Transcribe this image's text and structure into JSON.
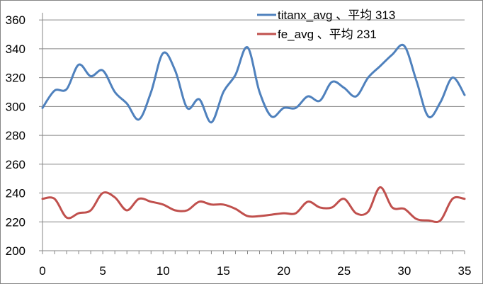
{
  "chart_data": {
    "type": "line",
    "smooth": true,
    "x": [
      0,
      1,
      2,
      3,
      4,
      5,
      6,
      7,
      8,
      9,
      10,
      11,
      12,
      13,
      14,
      15,
      16,
      17,
      18,
      19,
      20,
      21,
      22,
      23,
      24,
      25,
      26,
      27,
      28,
      29,
      30,
      31,
      32,
      33,
      34,
      35
    ],
    "xticks": [
      0,
      5,
      10,
      15,
      20,
      25,
      30,
      35
    ],
    "yticks": [
      200,
      220,
      240,
      260,
      280,
      300,
      320,
      340,
      360
    ],
    "xlim": [
      0,
      35
    ],
    "ylim": [
      200,
      365
    ],
    "grid": "horizontal",
    "legend_position": "top-right",
    "series": [
      {
        "name": "titanx_avg 、平均 313",
        "color": "#4f81bd",
        "values": [
          299,
          311,
          312,
          329,
          321,
          325,
          310,
          302,
          291,
          310,
          337,
          325,
          299,
          305,
          289,
          310,
          322,
          341,
          310,
          293,
          299,
          299,
          307,
          304,
          317,
          313,
          307,
          320,
          328,
          336,
          342,
          318,
          293,
          303,
          320,
          308
        ]
      },
      {
        "name": "fe_avg 、平均 231",
        "color": "#c0504d",
        "values": [
          236,
          236,
          223,
          226,
          228,
          240,
          237,
          228,
          236,
          234,
          232,
          228,
          228,
          234,
          232,
          232,
          229,
          224,
          224,
          225,
          226,
          226,
          234,
          230,
          230,
          236,
          226,
          227,
          244,
          230,
          229,
          222,
          221,
          221,
          236,
          236
        ]
      }
    ]
  }
}
